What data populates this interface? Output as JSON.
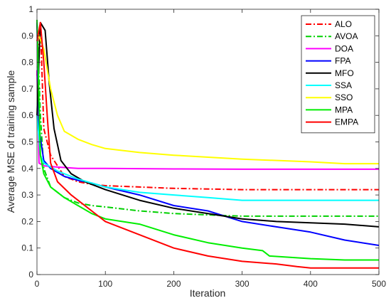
{
  "chart_data": {
    "type": "line",
    "xlabel": "Iteration",
    "ylabel": "Average MSE of training sample",
    "xlim": [
      0,
      500
    ],
    "ylim": [
      0,
      1
    ],
    "xticks": [
      0,
      100,
      200,
      300,
      400,
      500
    ],
    "yticks": [
      0,
      0.1,
      0.2,
      0.3,
      0.4,
      0.5,
      0.6,
      0.7,
      0.8,
      0.9,
      1
    ],
    "xtick_labels": [
      "0",
      "100",
      "200",
      "300",
      "400",
      "500"
    ],
    "ytick_labels": [
      "0",
      "0.1",
      "0.2",
      "0.3",
      "0.4",
      "0.5",
      "0.6",
      "0.7",
      "0.8",
      "0.9",
      "1"
    ],
    "grid": false,
    "legend_position": "top-right",
    "series": [
      {
        "name": "ALO",
        "color": "#ff0000",
        "dash": "dashdot",
        "points": [
          [
            0,
            0.75
          ],
          [
            5,
            0.95
          ],
          [
            10,
            0.55
          ],
          [
            20,
            0.45
          ],
          [
            40,
            0.37
          ],
          [
            60,
            0.35
          ],
          [
            80,
            0.34
          ],
          [
            100,
            0.335
          ],
          [
            150,
            0.33
          ],
          [
            200,
            0.325
          ],
          [
            300,
            0.32
          ],
          [
            400,
            0.32
          ],
          [
            500,
            0.32
          ]
        ]
      },
      {
        "name": "AVOA",
        "color": "#00d000",
        "dash": "dashdot",
        "points": [
          [
            0,
            0.95
          ],
          [
            5,
            0.6
          ],
          [
            10,
            0.4
          ],
          [
            20,
            0.33
          ],
          [
            40,
            0.29
          ],
          [
            60,
            0.27
          ],
          [
            80,
            0.26
          ],
          [
            100,
            0.255
          ],
          [
            150,
            0.24
          ],
          [
            200,
            0.23
          ],
          [
            250,
            0.225
          ],
          [
            300,
            0.22
          ],
          [
            400,
            0.22
          ],
          [
            500,
            0.22
          ]
        ]
      },
      {
        "name": "DOA",
        "color": "#ff00ff",
        "dash": "solid",
        "points": [
          [
            0,
            0.77
          ],
          [
            3,
            0.42
          ],
          [
            10,
            0.41
          ],
          [
            30,
            0.405
          ],
          [
            60,
            0.4
          ],
          [
            100,
            0.4
          ],
          [
            200,
            0.398
          ],
          [
            300,
            0.397
          ],
          [
            400,
            0.397
          ],
          [
            500,
            0.397
          ]
        ]
      },
      {
        "name": "FPA",
        "color": "#0000ff",
        "dash": "solid",
        "points": [
          [
            0,
            0.95
          ],
          [
            3,
            0.55
          ],
          [
            10,
            0.43
          ],
          [
            20,
            0.4
          ],
          [
            40,
            0.37
          ],
          [
            60,
            0.355
          ],
          [
            80,
            0.345
          ],
          [
            100,
            0.33
          ],
          [
            150,
            0.3
          ],
          [
            200,
            0.26
          ],
          [
            250,
            0.24
          ],
          [
            300,
            0.2
          ],
          [
            350,
            0.18
          ],
          [
            400,
            0.16
          ],
          [
            450,
            0.13
          ],
          [
            500,
            0.11
          ]
        ]
      },
      {
        "name": "MFO",
        "color": "#000000",
        "dash": "solid",
        "points": [
          [
            0,
            0.6
          ],
          [
            5,
            0.95
          ],
          [
            12,
            0.92
          ],
          [
            18,
            0.72
          ],
          [
            25,
            0.55
          ],
          [
            35,
            0.43
          ],
          [
            50,
            0.38
          ],
          [
            70,
            0.35
          ],
          [
            100,
            0.32
          ],
          [
            150,
            0.28
          ],
          [
            200,
            0.25
          ],
          [
            250,
            0.23
          ],
          [
            300,
            0.21
          ],
          [
            350,
            0.2
          ],
          [
            400,
            0.195
          ],
          [
            450,
            0.19
          ],
          [
            500,
            0.18
          ]
        ]
      },
      {
        "name": "SSA",
        "color": "#00ffff",
        "dash": "solid",
        "points": [
          [
            0,
            0.6
          ],
          [
            5,
            0.45
          ],
          [
            10,
            0.42
          ],
          [
            30,
            0.39
          ],
          [
            60,
            0.36
          ],
          [
            100,
            0.33
          ],
          [
            150,
            0.31
          ],
          [
            200,
            0.3
          ],
          [
            250,
            0.29
          ],
          [
            300,
            0.28
          ],
          [
            400,
            0.28
          ],
          [
            500,
            0.28
          ]
        ]
      },
      {
        "name": "SSO",
        "color": "#ffff00",
        "dash": "solid",
        "points": [
          [
            0,
            0.92
          ],
          [
            10,
            0.85
          ],
          [
            20,
            0.7
          ],
          [
            30,
            0.6
          ],
          [
            40,
            0.54
          ],
          [
            60,
            0.51
          ],
          [
            80,
            0.49
          ],
          [
            100,
            0.475
          ],
          [
            150,
            0.46
          ],
          [
            200,
            0.45
          ],
          [
            300,
            0.435
          ],
          [
            400,
            0.425
          ],
          [
            450,
            0.418
          ],
          [
            500,
            0.418
          ]
        ]
      },
      {
        "name": "MPA",
        "color": "#00ee00",
        "dash": "solid",
        "points": [
          [
            0,
            0.96
          ],
          [
            5,
            0.45
          ],
          [
            10,
            0.38
          ],
          [
            20,
            0.33
          ],
          [
            40,
            0.29
          ],
          [
            60,
            0.26
          ],
          [
            80,
            0.23
          ],
          [
            100,
            0.21
          ],
          [
            150,
            0.19
          ],
          [
            200,
            0.15
          ],
          [
            250,
            0.12
          ],
          [
            300,
            0.1
          ],
          [
            330,
            0.09
          ],
          [
            340,
            0.07
          ],
          [
            400,
            0.06
          ],
          [
            450,
            0.055
          ],
          [
            500,
            0.055
          ]
        ]
      },
      {
        "name": "EMPA",
        "color": "#ff0000",
        "dash": "solid",
        "points": [
          [
            0,
            0.88
          ],
          [
            5,
            0.95
          ],
          [
            10,
            0.8
          ],
          [
            15,
            0.6
          ],
          [
            20,
            0.42
          ],
          [
            30,
            0.35
          ],
          [
            50,
            0.3
          ],
          [
            80,
            0.24
          ],
          [
            100,
            0.2
          ],
          [
            150,
            0.15
          ],
          [
            200,
            0.1
          ],
          [
            250,
            0.07
          ],
          [
            300,
            0.05
          ],
          [
            350,
            0.04
          ],
          [
            380,
            0.03
          ],
          [
            400,
            0.025
          ],
          [
            500,
            0.025
          ]
        ]
      }
    ]
  }
}
